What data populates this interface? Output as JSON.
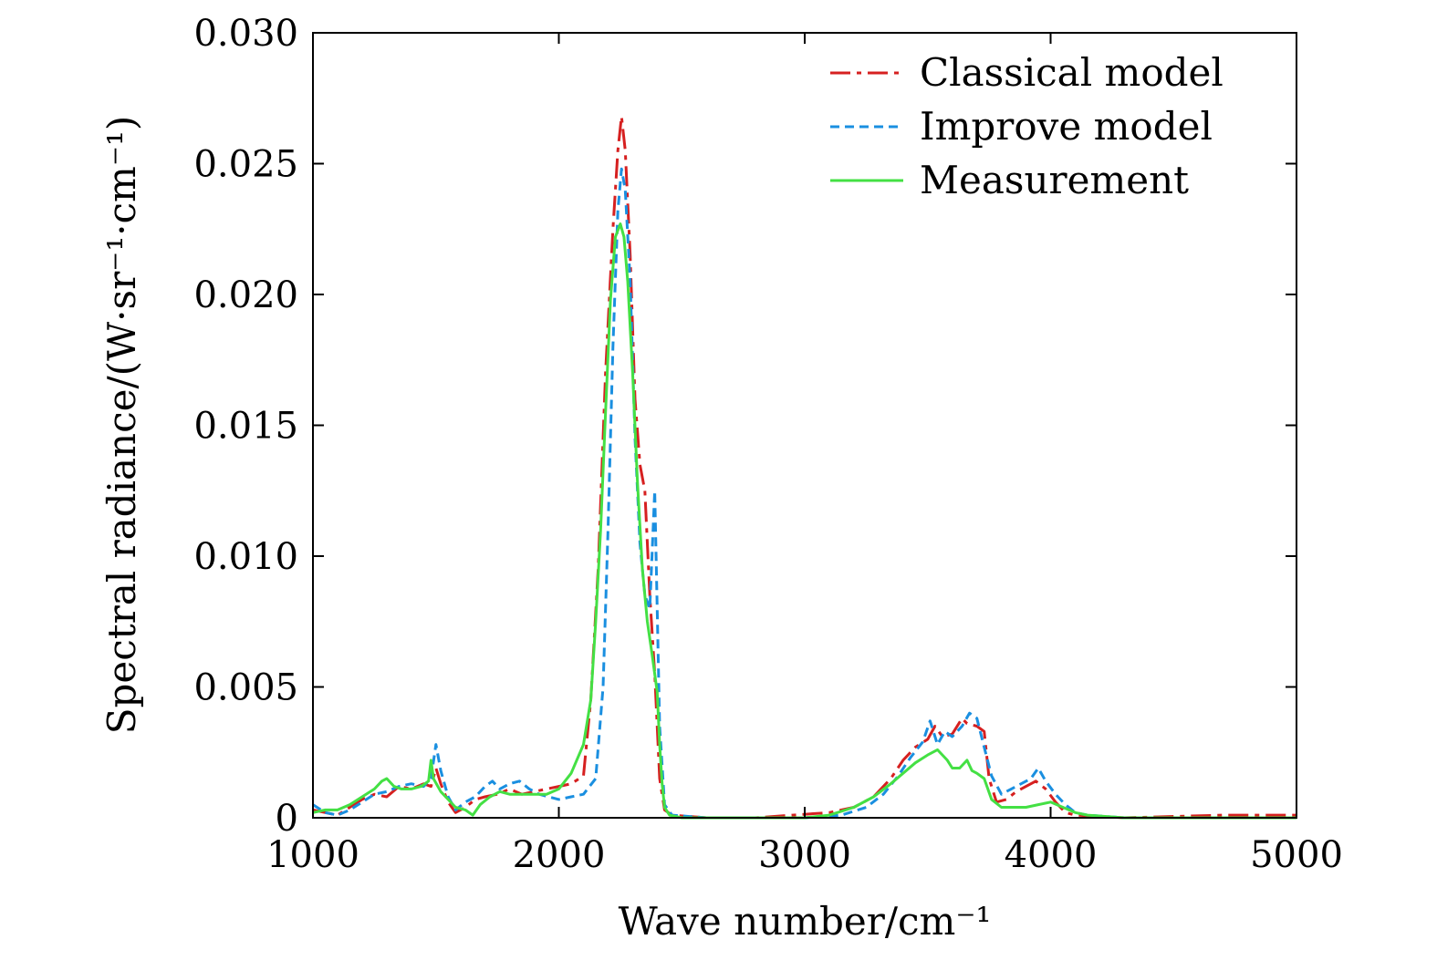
{
  "chart_data": {
    "type": "line",
    "title": "",
    "xlabel": "Wave number/cm⁻¹",
    "ylabel": "Spectral radiance/(W·sr⁻¹·cm⁻¹)",
    "xlim": [
      1000,
      5000
    ],
    "ylim": [
      0,
      0.03
    ],
    "x_ticks": [
      1000,
      2000,
      3000,
      4000,
      5000
    ],
    "x_tick_labels": [
      "1000",
      "2000",
      "3000",
      "4000",
      "5000"
    ],
    "y_ticks": [
      0,
      0.005,
      0.01,
      0.015,
      0.02,
      0.025,
      0.03
    ],
    "y_tick_labels": [
      "0",
      "0.005",
      "0.010",
      "0.015",
      "0.020",
      "0.025",
      "0.030"
    ],
    "grid": false,
    "legend": {
      "position": "top-right"
    },
    "series": [
      {
        "name": "Classical model",
        "color": "#d62020",
        "dash": "dash-dot",
        "points": [
          [
            1000,
            0.0003
          ],
          [
            1050,
            0.0002
          ],
          [
            1100,
            0.0001
          ],
          [
            1150,
            0.0004
          ],
          [
            1200,
            0.0007
          ],
          [
            1250,
            0.0009
          ],
          [
            1300,
            0.0008
          ],
          [
            1350,
            0.0012
          ],
          [
            1400,
            0.0011
          ],
          [
            1450,
            0.0013
          ],
          [
            1480,
            0.0012
          ],
          [
            1500,
            0.0019
          ],
          [
            1520,
            0.0013
          ],
          [
            1550,
            0.0006
          ],
          [
            1580,
            0.0002
          ],
          [
            1620,
            0.0004
          ],
          [
            1660,
            0.0007
          ],
          [
            1700,
            0.0008
          ],
          [
            1750,
            0.0009
          ],
          [
            1800,
            0.0011
          ],
          [
            1850,
            0.0009
          ],
          [
            1900,
            0.001
          ],
          [
            1950,
            0.0011
          ],
          [
            2000,
            0.0012
          ],
          [
            2050,
            0.0013
          ],
          [
            2100,
            0.0016
          ],
          [
            2130,
            0.0045
          ],
          [
            2160,
            0.0095
          ],
          [
            2190,
            0.017
          ],
          [
            2220,
            0.0225
          ],
          [
            2240,
            0.0255
          ],
          [
            2255,
            0.0268
          ],
          [
            2270,
            0.0255
          ],
          [
            2290,
            0.0215
          ],
          [
            2310,
            0.016
          ],
          [
            2330,
            0.0135
          ],
          [
            2350,
            0.0125
          ],
          [
            2370,
            0.0085
          ],
          [
            2390,
            0.0055
          ],
          [
            2410,
            0.0015
          ],
          [
            2430,
            0.0003
          ],
          [
            2460,
            0.0001
          ],
          [
            2600,
            0
          ],
          [
            2800,
            0
          ],
          [
            2950,
            0.0001
          ],
          [
            3100,
            0.0002
          ],
          [
            3200,
            0.0004
          ],
          [
            3280,
            0.0008
          ],
          [
            3350,
            0.0015
          ],
          [
            3400,
            0.0022
          ],
          [
            3450,
            0.0027
          ],
          [
            3500,
            0.003
          ],
          [
            3530,
            0.0035
          ],
          [
            3560,
            0.0031
          ],
          [
            3600,
            0.0032
          ],
          [
            3640,
            0.0038
          ],
          [
            3660,
            0.0036
          ],
          [
            3700,
            0.0035
          ],
          [
            3730,
            0.0033
          ],
          [
            3750,
            0.0015
          ],
          [
            3780,
            0.0006
          ],
          [
            3820,
            0.0007
          ],
          [
            3860,
            0.001
          ],
          [
            3900,
            0.0012
          ],
          [
            3940,
            0.0014
          ],
          [
            3980,
            0.0011
          ],
          [
            4020,
            0.0006
          ],
          [
            4060,
            0.0002
          ],
          [
            4100,
            0.0001
          ],
          [
            4300,
            0
          ],
          [
            4700,
            0.0001
          ],
          [
            5000,
            0.0001
          ]
        ]
      },
      {
        "name": "Improve model",
        "color": "#1a8fe0",
        "dash": "dashed",
        "points": [
          [
            1000,
            0.0005
          ],
          [
            1050,
            0.0002
          ],
          [
            1100,
            0.0001
          ],
          [
            1150,
            0.0003
          ],
          [
            1200,
            0.0006
          ],
          [
            1250,
            0.0009
          ],
          [
            1300,
            0.001
          ],
          [
            1350,
            0.0012
          ],
          [
            1400,
            0.0013
          ],
          [
            1450,
            0.0012
          ],
          [
            1480,
            0.0015
          ],
          [
            1500,
            0.0028
          ],
          [
            1520,
            0.0018
          ],
          [
            1550,
            0.0008
          ],
          [
            1580,
            0.0003
          ],
          [
            1620,
            0.0006
          ],
          [
            1660,
            0.0008
          ],
          [
            1700,
            0.0012
          ],
          [
            1730,
            0.0014
          ],
          [
            1760,
            0.0011
          ],
          [
            1800,
            0.0013
          ],
          [
            1840,
            0.0014
          ],
          [
            1880,
            0.0011
          ],
          [
            1920,
            0.0009
          ],
          [
            1960,
            0.0008
          ],
          [
            2000,
            0.0007
          ],
          [
            2050,
            0.0008
          ],
          [
            2100,
            0.0009
          ],
          [
            2150,
            0.0015
          ],
          [
            2180,
            0.005
          ],
          [
            2200,
            0.011
          ],
          [
            2220,
            0.018
          ],
          [
            2240,
            0.0232
          ],
          [
            2255,
            0.0248
          ],
          [
            2270,
            0.024
          ],
          [
            2290,
            0.0205
          ],
          [
            2310,
            0.0145
          ],
          [
            2330,
            0.0105
          ],
          [
            2350,
            0.0085
          ],
          [
            2370,
            0.008
          ],
          [
            2390,
            0.0125
          ],
          [
            2410,
            0.0035
          ],
          [
            2430,
            0.0005
          ],
          [
            2460,
            0.0001
          ],
          [
            2600,
            0
          ],
          [
            2800,
            0
          ],
          [
            3000,
            0
          ],
          [
            3150,
            0.0001
          ],
          [
            3250,
            0.0004
          ],
          [
            3320,
            0.0009
          ],
          [
            3380,
            0.0016
          ],
          [
            3430,
            0.0023
          ],
          [
            3480,
            0.0029
          ],
          [
            3510,
            0.0037
          ],
          [
            3540,
            0.0028
          ],
          [
            3570,
            0.0033
          ],
          [
            3600,
            0.0031
          ],
          [
            3640,
            0.0035
          ],
          [
            3670,
            0.004
          ],
          [
            3700,
            0.0038
          ],
          [
            3730,
            0.0027
          ],
          [
            3760,
            0.0016
          ],
          [
            3800,
            0.0009
          ],
          [
            3840,
            0.0011
          ],
          [
            3880,
            0.0013
          ],
          [
            3920,
            0.0015
          ],
          [
            3950,
            0.0019
          ],
          [
            3980,
            0.0014
          ],
          [
            4020,
            0.0009
          ],
          [
            4060,
            0.0005
          ],
          [
            4100,
            0.0002
          ],
          [
            4150,
            0.0001
          ],
          [
            4300,
            0
          ],
          [
            5000,
            0
          ]
        ]
      },
      {
        "name": "Measurement",
        "color": "#44e044",
        "dash": "solid",
        "points": [
          [
            1000,
            0.0002
          ],
          [
            1050,
            0.0003
          ],
          [
            1100,
            0.0003
          ],
          [
            1150,
            0.0005
          ],
          [
            1200,
            0.0008
          ],
          [
            1250,
            0.0011
          ],
          [
            1280,
            0.0014
          ],
          [
            1300,
            0.0015
          ],
          [
            1330,
            0.0012
          ],
          [
            1360,
            0.0011
          ],
          [
            1400,
            0.0011
          ],
          [
            1440,
            0.0012
          ],
          [
            1470,
            0.0014
          ],
          [
            1480,
            0.0022
          ],
          [
            1490,
            0.0015
          ],
          [
            1520,
            0.001
          ],
          [
            1550,
            0.0007
          ],
          [
            1580,
            0.0004
          ],
          [
            1620,
            0.0003
          ],
          [
            1650,
            0.0001
          ],
          [
            1680,
            0.0005
          ],
          [
            1720,
            0.0008
          ],
          [
            1760,
            0.001
          ],
          [
            1800,
            0.0009
          ],
          [
            1850,
            0.0009
          ],
          [
            1900,
            0.0009
          ],
          [
            1950,
            0.0009
          ],
          [
            2000,
            0.0011
          ],
          [
            2050,
            0.0017
          ],
          [
            2100,
            0.0028
          ],
          [
            2130,
            0.0045
          ],
          [
            2150,
            0.0075
          ],
          [
            2170,
            0.011
          ],
          [
            2190,
            0.0155
          ],
          [
            2210,
            0.0198
          ],
          [
            2230,
            0.0222
          ],
          [
            2250,
            0.0227
          ],
          [
            2265,
            0.0222
          ],
          [
            2280,
            0.0205
          ],
          [
            2300,
            0.017
          ],
          [
            2320,
            0.0128
          ],
          [
            2340,
            0.0095
          ],
          [
            2360,
            0.0075
          ],
          [
            2380,
            0.0062
          ],
          [
            2400,
            0.0048
          ],
          [
            2410,
            0.0028
          ],
          [
            2420,
            0.0013
          ],
          [
            2430,
            0.0004
          ],
          [
            2450,
            0.0001
          ],
          [
            2500,
            0
          ],
          [
            2800,
            0
          ],
          [
            3000,
            0
          ],
          [
            3100,
            0.0001
          ],
          [
            3200,
            0.0004
          ],
          [
            3280,
            0.0008
          ],
          [
            3350,
            0.0013
          ],
          [
            3400,
            0.0017
          ],
          [
            3450,
            0.0021
          ],
          [
            3500,
            0.0024
          ],
          [
            3540,
            0.0026
          ],
          [
            3580,
            0.0022
          ],
          [
            3600,
            0.0019
          ],
          [
            3630,
            0.0019
          ],
          [
            3660,
            0.0022
          ],
          [
            3680,
            0.0018
          ],
          [
            3700,
            0.0017
          ],
          [
            3730,
            0.0015
          ],
          [
            3760,
            0.0007
          ],
          [
            3800,
            0.0004
          ],
          [
            3850,
            0.0004
          ],
          [
            3900,
            0.0004
          ],
          [
            3950,
            0.0005
          ],
          [
            4000,
            0.0006
          ],
          [
            4050,
            0.0004
          ],
          [
            4100,
            0.0002
          ],
          [
            4150,
            0.0001
          ],
          [
            4300,
            0
          ],
          [
            5000,
            0
          ]
        ]
      }
    ]
  }
}
